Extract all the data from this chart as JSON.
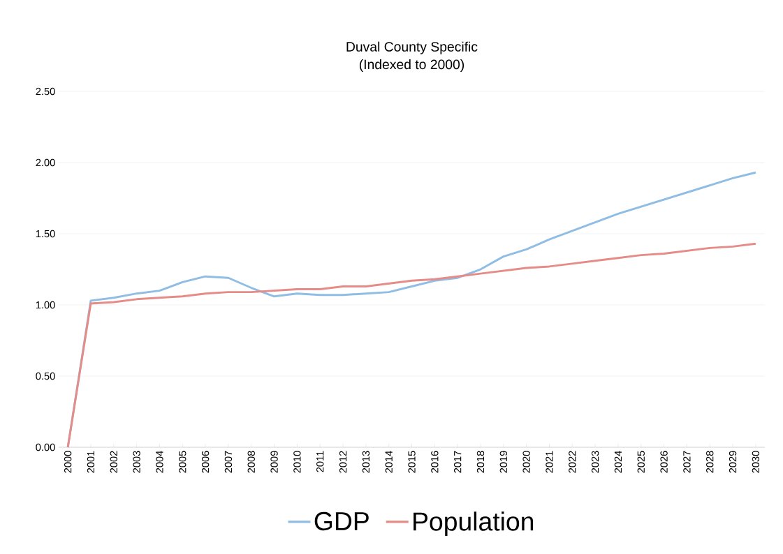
{
  "chart_data": {
    "type": "line",
    "title": "Duval County Specific\n(Indexed to 2000)",
    "categories": [
      "2000",
      "2001",
      "2002",
      "2003",
      "2004",
      "2005",
      "2006",
      "2007",
      "2008",
      "2009",
      "2010",
      "2011",
      "2012",
      "2013",
      "2014",
      "2015",
      "2016",
      "2017",
      "2018",
      "2019",
      "2020",
      "2021",
      "2022",
      "2023",
      "2024",
      "2025",
      "2026",
      "2027",
      "2028",
      "2029",
      "2030"
    ],
    "series": [
      {
        "name": "GDP",
        "color": "#8fbde3",
        "values": [
          0,
          1.03,
          1.05,
          1.08,
          1.1,
          1.16,
          1.2,
          1.19,
          1.12,
          1.06,
          1.08,
          1.07,
          1.07,
          1.08,
          1.09,
          1.13,
          1.17,
          1.19,
          1.25,
          1.34,
          1.39,
          1.46,
          1.52,
          1.58,
          1.64,
          1.69,
          1.74,
          1.79,
          1.84,
          1.89,
          1.93
        ]
      },
      {
        "name": "Population",
        "color": "#e58c88",
        "values": [
          0,
          1.01,
          1.02,
          1.04,
          1.05,
          1.06,
          1.08,
          1.09,
          1.09,
          1.1,
          1.11,
          1.11,
          1.13,
          1.13,
          1.15,
          1.17,
          1.18,
          1.2,
          1.22,
          1.24,
          1.26,
          1.27,
          1.29,
          1.31,
          1.33,
          1.35,
          1.36,
          1.38,
          1.4,
          1.41,
          1.43
        ]
      }
    ],
    "ylim": [
      0,
      2.5
    ],
    "yticks": [
      {
        "value": 0,
        "label": "0.00"
      },
      {
        "value": 0.5,
        "label": "0.50"
      },
      {
        "value": 1,
        "label": "1.00"
      },
      {
        "value": 1.5,
        "label": "1.50"
      },
      {
        "value": 2,
        "label": "2.00"
      },
      {
        "value": 2.5,
        "label": "2.50"
      }
    ],
    "grid": "y",
    "legend": "bottom",
    "marker": "none",
    "line_style": "solid"
  }
}
